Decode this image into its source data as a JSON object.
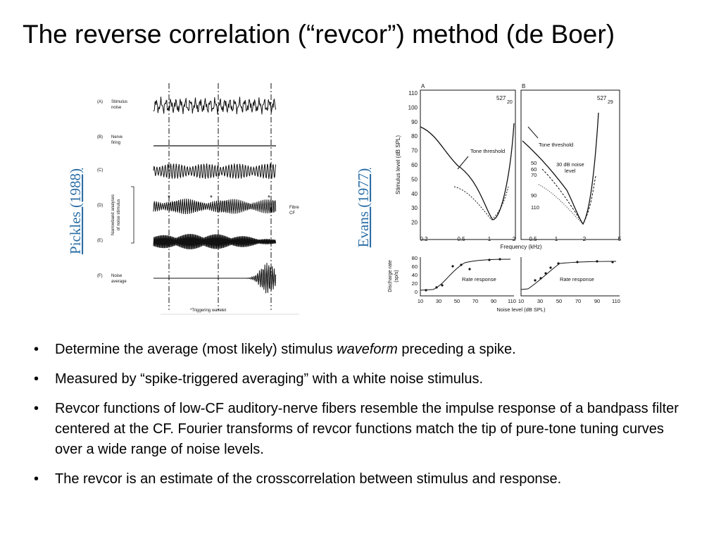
{
  "title": "The reverse correlation (“revcor”) method (de Boer)",
  "figures": {
    "left": {
      "citation": "Pickles (1988)",
      "rows": [
        {
          "letter": "(A)",
          "label": [
            "Stimulus",
            "noise"
          ]
        },
        {
          "letter": "(B)",
          "label": [
            "Nerve",
            "firing"
          ]
        },
        {
          "letter": "(C)",
          "label": []
        },
        {
          "letter": "(D)",
          "label": []
        },
        {
          "letter": "(E)",
          "label": []
        },
        {
          "letter": "(F)",
          "label": [
            "Noise",
            "average"
          ]
        }
      ],
      "side_label": [
        "Narrowband analyses",
        "of noise stimulus"
      ],
      "fibre": [
        "Fibre",
        "CF"
      ],
      "footnote": "*Triggering wavelet"
    },
    "right": {
      "citation": "Evans (1977)",
      "panels": [
        "A",
        "B"
      ],
      "units": [
        {
          "num": "527",
          "sub": "20"
        },
        {
          "num": "527",
          "sub": "29"
        }
      ],
      "ylabel_top": "Stimulus level (dB SPL)",
      "yticks_top": [
        "110",
        "100",
        "90",
        "80",
        "70",
        "60",
        "50",
        "40",
        "30",
        "20"
      ],
      "xticks_a": [
        "0.2",
        "0.5",
        "1",
        "2"
      ],
      "xticks_b": [
        "0.5",
        "1",
        "2",
        "5"
      ],
      "xlabel_top": "Frequency (kHz)",
      "tone_threshold": "Tone threshold",
      "noise_level": [
        "30 dB noise",
        "level"
      ],
      "levels": [
        "50",
        "60",
        "70",
        "90",
        "110"
      ],
      "ylabel_bottom": [
        "Discharge rate",
        "(sp/s)"
      ],
      "yticks_bottom": [
        "80",
        "60",
        "40",
        "20",
        "0"
      ],
      "xticks_bottom": [
        "10",
        "30",
        "50",
        "70",
        "90",
        "110"
      ],
      "rate_response": "Rate response",
      "xlabel_bottom": "Noise level (dB SPL)"
    }
  },
  "bullets": [
    {
      "before": "Determine the average (most likely) stimulus ",
      "emphasis": "waveform",
      "after": " preceding a spike."
    },
    {
      "text": "Measured by “spike-triggered averaging” with a white noise stimulus."
    },
    {
      "text": "Revcor functions of low-CF auditory-nerve fibers resemble the impulse response of a bandpass filter centered at the CF.  Fourier transforms of revcor functions match the tip of pure-tone tuning curves over a wide range of noise levels."
    },
    {
      "text": "The revcor is an estimate of the crosscorrelation between stimulus and response."
    }
  ]
}
